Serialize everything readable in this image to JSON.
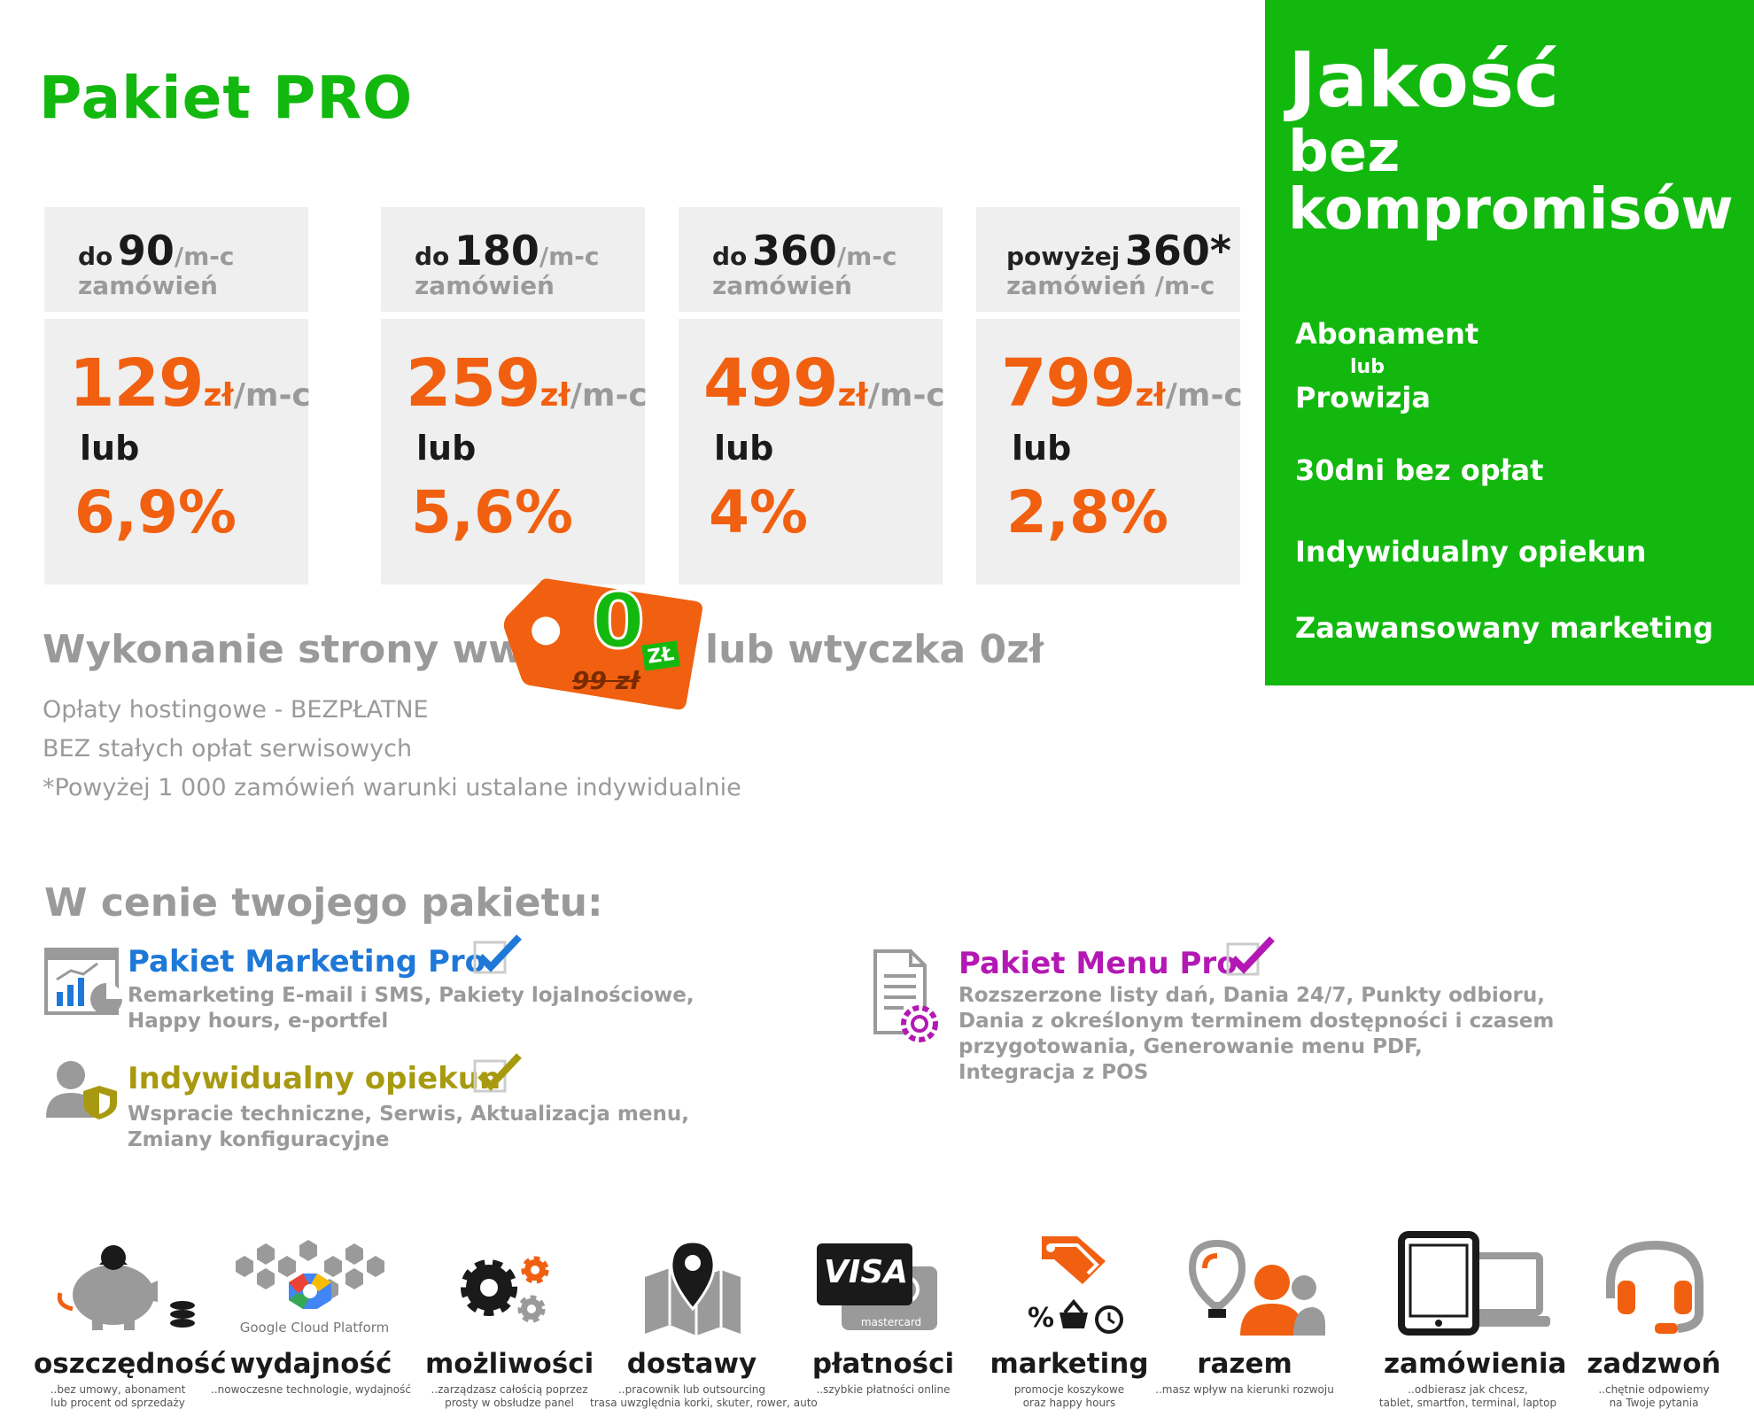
{
  "title": "Pakiet PRO",
  "plans": [
    {
      "pre": "do",
      "num": "90",
      "unit": "/m-c",
      "line2": "zamówień",
      "amount": "129",
      "zl": "zł",
      "pm": "/m-c",
      "lub": "lub",
      "pct": "6,9%"
    },
    {
      "pre": "do",
      "num": "180",
      "unit": "/m-c",
      "line2": "zamówień",
      "amount": "259",
      "zl": "zł",
      "pm": "/m-c",
      "lub": "lub",
      "pct": "5,6%"
    },
    {
      "pre": "do",
      "num": "360",
      "unit": "/m-c",
      "line2": "zamówień",
      "amount": "499",
      "zl": "zł",
      "pm": "/m-c",
      "lub": "lub",
      "pct": "4%"
    },
    {
      "pre": "powyżej",
      "num": "360*",
      "unit": "",
      "line2": "zamówień /m-c",
      "amount": "799",
      "zl": "zł",
      "pm": "/m-c",
      "lub": "lub",
      "pct": "2,8%"
    }
  ],
  "promo": {
    "h1": "Jakość",
    "h2a": "bez",
    "h2b": "kompromisów",
    "f1": "Abonament",
    "f1_small": "lub",
    "f2": "Prowizja",
    "f3": "30dni bez opłat",
    "f4": "Indywidualny opiekun",
    "f5": "Zaawansowany marketing"
  },
  "website": {
    "left": "Wykonanie strony www",
    "right": "lub wtyczka 0zł",
    "tag_value": "0",
    "tag_currency": "ZŁ",
    "tag_old": "99 zł"
  },
  "notes": [
    "Opłaty hostingowe - BEZPŁATNE",
    "BEZ stałych opłat serwisowych",
    "*Powyżej 1 000 zamówień warunki ustalane indywidualnie"
  ],
  "section_title": "W cenie twojego pakietu:",
  "features": {
    "marketing": {
      "title": "Pakiet Marketing Pro",
      "desc1": "Remarketing E-mail i SMS, Pakiety lojalnościowe,",
      "desc2": "Happy hours, e-portfel",
      "color": "#1e78d8"
    },
    "opiekun": {
      "title": "Indywidualny opiekun",
      "desc1": "Wspracie techniczne, Serwis, Aktualizacja menu,",
      "desc2": "Zmiany konfiguracyjne",
      "color": "#a89a10"
    },
    "menu": {
      "title": "Pakiet Menu Pro",
      "desc1": "Rozszerzone listy dań, Dania 24/7, Punkty odbioru,",
      "desc2": "Dania z określonym terminem dostępności i czasem",
      "desc3": "przygotowania, Generowanie menu PDF,",
      "desc4": "Integracja z POS",
      "color": "#b418b4"
    }
  },
  "bottom": [
    {
      "label": "oszczędność",
      "sub1": "..bez umowy, abonament",
      "sub2": "lub procent od sprzedaży",
      "icon": "piggy-bank-icon"
    },
    {
      "label": "wydajność",
      "sub1": "..nowoczesne technologie, wydajność",
      "sub2": "",
      "icon": "google-cloud-icon",
      "logo_text": "Google Cloud Platform"
    },
    {
      "label": "możliwości",
      "sub1": "..zarządzasz całością poprzez",
      "sub2": "prosty w obsłudze panel",
      "icon": "gears-icon"
    },
    {
      "label": "dostawy",
      "sub1": "..pracownik lub outsourcing",
      "sub2": "trasa uwzględnia korki, skuter, rower, auto",
      "icon": "map-pin-icon"
    },
    {
      "label": "płatności",
      "sub1": "..szybkie płatności online",
      "sub2": "",
      "icon": "payment-cards-icon",
      "visa": "VISA",
      "mc": "mastercard"
    },
    {
      "label": "marketing",
      "sub1": "promocje koszykowe",
      "sub2": "oraz happy hours",
      "icon": "tags-icon"
    },
    {
      "label": "razem",
      "sub1": "..masz wpływ na kierunki rozwoju",
      "sub2": "",
      "icon": "idea-people-icon"
    },
    {
      "label": "zamówienia",
      "sub1": "..odbierasz jak chcesz,",
      "sub2": "tablet, smartfon, terminal, laptop",
      "icon": "devices-icon"
    },
    {
      "label": "zadzwoń",
      "sub1": "..chętnie odpowiemy",
      "sub2": "na Twoje pytania",
      "icon": "headset-icon"
    }
  ]
}
